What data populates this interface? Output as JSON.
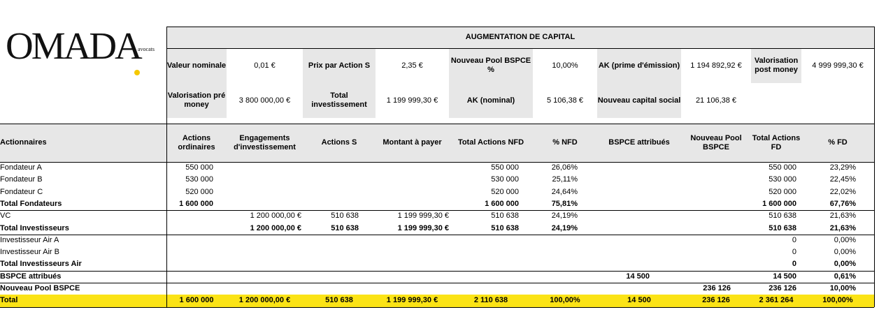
{
  "logo": {
    "brand": "OMADA",
    "sub": "avocats"
  },
  "augmentation": {
    "title": "AUGMENTATION DE CAPITAL",
    "row1": [
      {
        "label": "Valeur nominale",
        "value": "0,01 €"
      },
      {
        "label": "Prix par Action S",
        "value": "2,35 €"
      },
      {
        "label": "Nouveau Pool BSPCE %",
        "value": "10,00%"
      },
      {
        "label": "AK (prime d'émission)",
        "value": "1 194 892,92 €"
      },
      {
        "label": "Valorisation post money",
        "value": "4 999 999,30 €"
      }
    ],
    "row2": [
      {
        "label": "Valorisation pré money",
        "value": "3 800 000,00 €"
      },
      {
        "label": "Total investissement",
        "value": "1 199 999,30 €"
      },
      {
        "label": "AK (nominal)",
        "value": "5 106,38 €"
      },
      {
        "label": "Nouveau capital social",
        "value": "21 106,38 €"
      }
    ]
  },
  "table": {
    "row_header": "Actionnaires",
    "headers": [
      "Actions ordinaires",
      "Engagements d'investissement",
      "Actions S",
      "Montant à payer",
      "Total Actions NFD",
      "% NFD",
      "BSPCE attribués",
      "Nouveau Pool BSPCE",
      "Total Actions FD",
      "% FD"
    ],
    "rows": [
      {
        "label": "Fondateur A",
        "bold": false,
        "cells": [
          "550 000",
          "",
          "",
          "",
          "550 000",
          "26,06%",
          "",
          "",
          "550 000",
          "23,29%"
        ]
      },
      {
        "label": "Fondateur B",
        "bold": false,
        "cells": [
          "530 000",
          "",
          "",
          "",
          "530 000",
          "25,11%",
          "",
          "",
          "530 000",
          "22,45%"
        ]
      },
      {
        "label": "Fondateur C",
        "bold": false,
        "cells": [
          "520 000",
          "",
          "",
          "",
          "520 000",
          "24,64%",
          "",
          "",
          "520 000",
          "22,02%"
        ]
      },
      {
        "label": "Total Fondateurs",
        "bold": true,
        "cells": [
          "1 600 000",
          "",
          "",
          "",
          "1 600 000",
          "75,81%",
          "",
          "",
          "1 600 000",
          "67,76%"
        ]
      },
      {
        "label": "VC",
        "bold": false,
        "cells": [
          "",
          "1 200 000,00 €",
          "510 638",
          "1 199 999,30 €",
          "510 638",
          "24,19%",
          "",
          "",
          "510 638",
          "21,63%"
        ]
      },
      {
        "label": "Total Investisseurs",
        "bold": true,
        "cells": [
          "",
          "1 200 000,00 €",
          "510 638",
          "1 199 999,30 €",
          "510 638",
          "24,19%",
          "",
          "",
          "510 638",
          "21,63%"
        ]
      },
      {
        "label": "Investisseur Air A",
        "bold": false,
        "cells": [
          "",
          "",
          "",
          "",
          "",
          "",
          "",
          "",
          "0",
          "0,00%"
        ]
      },
      {
        "label": "Investisseur Air B",
        "bold": false,
        "cells": [
          "",
          "",
          "",
          "",
          "",
          "",
          "",
          "",
          "0",
          "0,00%"
        ]
      },
      {
        "label": "Total Investisseurs Air",
        "bold": true,
        "cells": [
          "",
          "",
          "",
          "",
          "",
          "",
          "",
          "",
          "0",
          "0,00%"
        ]
      },
      {
        "label": "BSPCE attribués",
        "bold": true,
        "cells": [
          "",
          "",
          "",
          "",
          "",
          "",
          "14 500",
          "",
          "14 500",
          "0,61%"
        ]
      },
      {
        "label": "Nouveau Pool BSPCE",
        "bold": true,
        "cells": [
          "",
          "",
          "",
          "",
          "",
          "",
          "",
          "236 126",
          "236 126",
          "10,00%"
        ]
      },
      {
        "label": "Total",
        "bold": true,
        "cells": [
          "1 600 000",
          "1 200 000,00 €",
          "510 638",
          "1 199 999,30 €",
          "2 110 638",
          "100,00%",
          "14 500",
          "236 126",
          "2 361 264",
          "100,00%"
        ]
      }
    ]
  },
  "colors": {
    "header_gray": "#e7e7e7",
    "total_yellow": "#fbe316",
    "logo_dot": "#f5c800"
  }
}
